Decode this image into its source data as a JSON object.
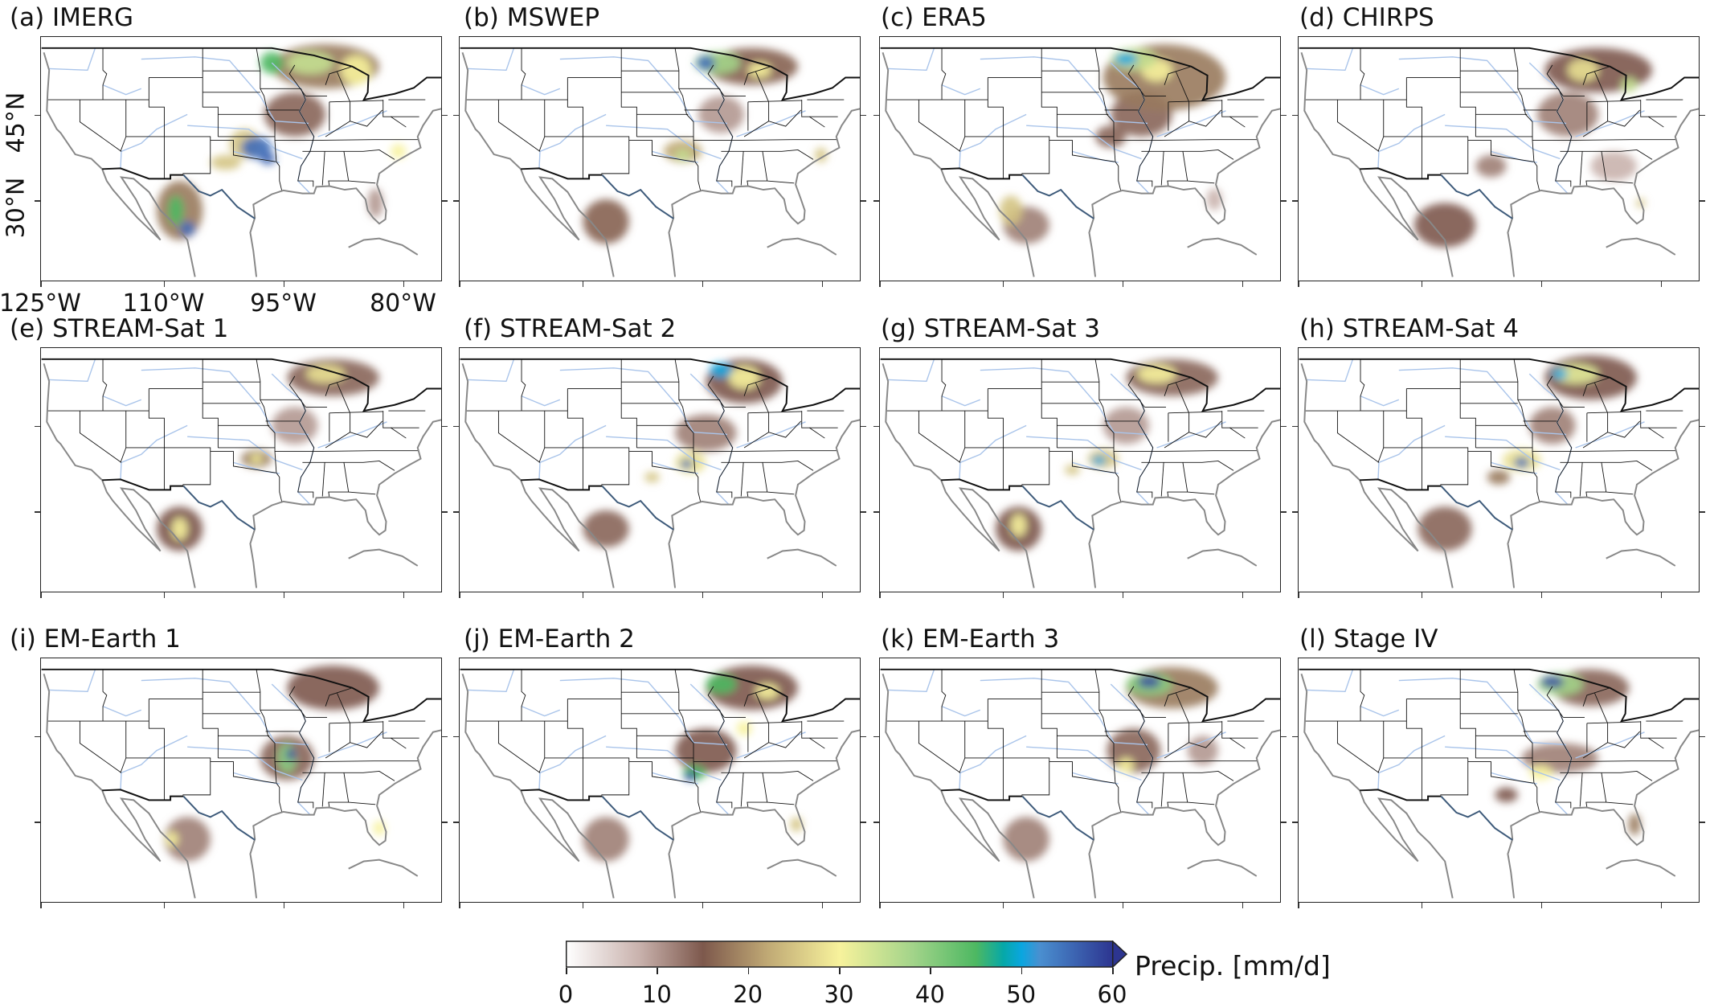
{
  "panels": [
    {
      "label": "(a) IMERG",
      "precip_regions": [
        {
          "lon": -88,
          "lat": 46.5,
          "rx": 7,
          "ry": 3,
          "mm": 18
        },
        {
          "lon": -92,
          "lat": 40,
          "rx": 4,
          "ry": 3,
          "mm": 14
        },
        {
          "lon": -90,
          "lat": 47,
          "rx": 3,
          "ry": 1.5,
          "mm": 35
        },
        {
          "lon": -84,
          "lat": 46,
          "rx": 2,
          "ry": 2,
          "mm": 30
        },
        {
          "lon": -95,
          "lat": 47,
          "rx": 1.5,
          "ry": 1.5,
          "mm": 45
        },
        {
          "lon": -98.5,
          "lat": 36,
          "rx": 2,
          "ry": 2,
          "mm": 25
        },
        {
          "lon": -97,
          "lat": 35.5,
          "rx": 2,
          "ry": 1.5,
          "mm": 55
        },
        {
          "lon": -95.5,
          "lat": 34,
          "rx": 1,
          "ry": 0.8,
          "mm": 56
        },
        {
          "lon": -101,
          "lat": 33.5,
          "rx": 2,
          "ry": 1,
          "mm": 25
        },
        {
          "lon": -107,
          "lat": 27,
          "rx": 3,
          "ry": 4,
          "mm": 18
        },
        {
          "lon": -107.5,
          "lat": 27,
          "rx": 1,
          "ry": 2,
          "mm": 45
        },
        {
          "lon": -106,
          "lat": 24.5,
          "rx": 1,
          "ry": 1,
          "mm": 55
        },
        {
          "lon": -78.5,
          "lat": 35,
          "rx": 1,
          "ry": 1,
          "mm": 30
        },
        {
          "lon": -81.5,
          "lat": 28,
          "rx": 1,
          "ry": 2,
          "mm": 10
        }
      ]
    },
    {
      "label": "(b) MSWEP",
      "precip_regions": [
        {
          "lon": -87,
          "lat": 46.5,
          "rx": 6,
          "ry": 2.5,
          "mm": 16
        },
        {
          "lon": -91,
          "lat": 40,
          "rx": 3,
          "ry": 2.5,
          "mm": 10
        },
        {
          "lon": -91.5,
          "lat": 47,
          "rx": 3,
          "ry": 1.5,
          "mm": 38
        },
        {
          "lon": -86,
          "lat": 46,
          "rx": 1.5,
          "ry": 1,
          "mm": 30
        },
        {
          "lon": -93,
          "lat": 47,
          "rx": 1.2,
          "ry": 1,
          "mm": 55
        },
        {
          "lon": -96,
          "lat": 35,
          "rx": 2.5,
          "ry": 1.5,
          "mm": 22
        },
        {
          "lon": -96,
          "lat": 34.5,
          "rx": 1,
          "ry": 0.7,
          "mm": 35
        },
        {
          "lon": -106,
          "lat": 25.5,
          "rx": 3,
          "ry": 3,
          "mm": 16
        },
        {
          "lon": -78,
          "lat": 34.5,
          "rx": 0.8,
          "ry": 1,
          "mm": 25
        }
      ]
    },
    {
      "label": "(c) ERA5",
      "precip_regions": [
        {
          "lon": -88,
          "lat": 45,
          "rx": 8,
          "ry": 4.5,
          "mm": 18
        },
        {
          "lon": -91,
          "lat": 40,
          "rx": 4,
          "ry": 3,
          "mm": 14
        },
        {
          "lon": -95,
          "lat": 37,
          "rx": 2,
          "ry": 1.5,
          "mm": 14
        },
        {
          "lon": -89,
          "lat": 46,
          "rx": 2,
          "ry": 1.5,
          "mm": 30
        },
        {
          "lon": -92,
          "lat": 47.5,
          "rx": 3,
          "ry": 1.5,
          "mm": 35
        },
        {
          "lon": -93,
          "lat": 47.5,
          "rx": 1.5,
          "ry": 0.8,
          "mm": 50
        },
        {
          "lon": -106,
          "lat": 25,
          "rx": 3,
          "ry": 2.5,
          "mm": 12
        },
        {
          "lon": -108,
          "lat": 27,
          "rx": 1.5,
          "ry": 2,
          "mm": 25
        },
        {
          "lon": -81.5,
          "lat": 28.5,
          "rx": 1,
          "ry": 1.5,
          "mm": 8
        }
      ]
    },
    {
      "label": "(d) CHIRPS",
      "precip_regions": [
        {
          "lon": -86,
          "lat": 46,
          "rx": 7,
          "ry": 3,
          "mm": 15
        },
        {
          "lon": -90,
          "lat": 40,
          "rx": 4,
          "ry": 3,
          "mm": 12
        },
        {
          "lon": -88,
          "lat": 46,
          "rx": 2,
          "ry": 1.5,
          "mm": 28
        },
        {
          "lon": -82,
          "lat": 44,
          "rx": 1,
          "ry": 1,
          "mm": 35
        },
        {
          "lon": -100,
          "lat": 33,
          "rx": 2,
          "ry": 1.5,
          "mm": 12
        },
        {
          "lon": -106,
          "lat": 25,
          "rx": 4,
          "ry": 3,
          "mm": 15
        },
        {
          "lon": -84,
          "lat": 33,
          "rx": 3,
          "ry": 2,
          "mm": 8
        },
        {
          "lon": -80.5,
          "lat": 28,
          "rx": 0.6,
          "ry": 0.6,
          "mm": 25
        }
      ]
    },
    {
      "label": "(e) STREAM-Sat 1",
      "precip_regions": [
        {
          "lon": -87,
          "lat": 46.5,
          "rx": 6,
          "ry": 2.5,
          "mm": 14
        },
        {
          "lon": -92,
          "lat": 40,
          "rx": 3,
          "ry": 2.5,
          "mm": 10
        },
        {
          "lon": -88,
          "lat": 47,
          "rx": 2.5,
          "ry": 1.2,
          "mm": 28
        },
        {
          "lon": -97,
          "lat": 35.5,
          "rx": 2,
          "ry": 1.2,
          "mm": 18
        },
        {
          "lon": -97,
          "lat": 35.5,
          "rx": 0.8,
          "ry": 0.6,
          "mm": 30
        },
        {
          "lon": -107,
          "lat": 26,
          "rx": 3,
          "ry": 3,
          "mm": 15
        },
        {
          "lon": -107,
          "lat": 26,
          "rx": 1,
          "ry": 1.5,
          "mm": 30
        }
      ]
    },
    {
      "label": "(f) STREAM-Sat 2",
      "precip_regions": [
        {
          "lon": -88,
          "lat": 46,
          "rx": 5,
          "ry": 3,
          "mm": 15
        },
        {
          "lon": -93,
          "lat": 39,
          "rx": 4,
          "ry": 2.5,
          "mm": 12
        },
        {
          "lon": -88,
          "lat": 46.5,
          "rx": 2,
          "ry": 1.5,
          "mm": 30
        },
        {
          "lon": -91,
          "lat": 47.5,
          "rx": 1.5,
          "ry": 1,
          "mm": 50
        },
        {
          "lon": -95,
          "lat": 35,
          "rx": 2,
          "ry": 1.5,
          "mm": 28
        },
        {
          "lon": -95.5,
          "lat": 34.8,
          "rx": 0.8,
          "ry": 0.6,
          "mm": 55
        },
        {
          "lon": -100,
          "lat": 33,
          "rx": 1,
          "ry": 0.7,
          "mm": 25
        },
        {
          "lon": -106,
          "lat": 26,
          "rx": 3,
          "ry": 2.5,
          "mm": 14
        }
      ]
    },
    {
      "label": "(g) STREAM-Sat 3",
      "precip_regions": [
        {
          "lon": -87,
          "lat": 46.5,
          "rx": 6,
          "ry": 2.5,
          "mm": 14
        },
        {
          "lon": -93,
          "lat": 40,
          "rx": 3,
          "ry": 2.5,
          "mm": 10
        },
        {
          "lon": -89,
          "lat": 47,
          "rx": 2.5,
          "ry": 1.2,
          "mm": 30
        },
        {
          "lon": -96,
          "lat": 35.5,
          "rx": 2,
          "ry": 1.3,
          "mm": 25
        },
        {
          "lon": -96.5,
          "lat": 35.3,
          "rx": 0.9,
          "ry": 0.6,
          "mm": 50
        },
        {
          "lon": -100,
          "lat": 34,
          "rx": 1,
          "ry": 0.7,
          "mm": 25
        },
        {
          "lon": -107,
          "lat": 26,
          "rx": 3,
          "ry": 3,
          "mm": 15
        },
        {
          "lon": -107,
          "lat": 26.5,
          "rx": 1,
          "ry": 1.5,
          "mm": 30
        }
      ]
    },
    {
      "label": "(h) STREAM-Sat 4",
      "precip_regions": [
        {
          "lon": -87,
          "lat": 46.5,
          "rx": 6,
          "ry": 3,
          "mm": 15
        },
        {
          "lon": -92,
          "lat": 40,
          "rx": 3,
          "ry": 2.5,
          "mm": 12
        },
        {
          "lon": -89,
          "lat": 47,
          "rx": 3,
          "ry": 1.3,
          "mm": 32
        },
        {
          "lon": -91,
          "lat": 47,
          "rx": 1,
          "ry": 0.7,
          "mm": 50
        },
        {
          "lon": -96,
          "lat": 35.3,
          "rx": 2.5,
          "ry": 1.5,
          "mm": 28
        },
        {
          "lon": -96,
          "lat": 35,
          "rx": 1,
          "ry": 0.7,
          "mm": 55
        },
        {
          "lon": -99,
          "lat": 33,
          "rx": 1.5,
          "ry": 1,
          "mm": 18
        },
        {
          "lon": -106,
          "lat": 26,
          "rx": 3.5,
          "ry": 3,
          "mm": 14
        }
      ]
    },
    {
      "label": "(i) EM-Earth 1",
      "precip_regions": [
        {
          "lon": -87,
          "lat": 46.5,
          "rx": 6,
          "ry": 3,
          "mm": 15
        },
        {
          "lon": -93,
          "lat": 37,
          "rx": 3.5,
          "ry": 3,
          "mm": 14
        },
        {
          "lon": -93,
          "lat": 37,
          "rx": 1.2,
          "ry": 2,
          "mm": 40
        },
        {
          "lon": -92.5,
          "lat": 37.5,
          "rx": 0.6,
          "ry": 0.8,
          "mm": 58
        },
        {
          "lon": -106,
          "lat": 26,
          "rx": 3,
          "ry": 3,
          "mm": 12
        },
        {
          "lon": -108,
          "lat": 26,
          "rx": 0.8,
          "ry": 1,
          "mm": 30
        },
        {
          "lon": -81,
          "lat": 27.5,
          "rx": 0.8,
          "ry": 1,
          "mm": 30
        }
      ]
    },
    {
      "label": "(j) EM-Earth 2",
      "precip_regions": [
        {
          "lon": -87,
          "lat": 46.5,
          "rx": 6,
          "ry": 3,
          "mm": 15
        },
        {
          "lon": -93,
          "lat": 38,
          "rx": 4,
          "ry": 3,
          "mm": 15
        },
        {
          "lon": -85,
          "lat": 46,
          "rx": 1.5,
          "ry": 1,
          "mm": 30
        },
        {
          "lon": -91,
          "lat": 47,
          "rx": 2,
          "ry": 1.3,
          "mm": 45
        },
        {
          "lon": -88,
          "lat": 41,
          "rx": 1,
          "ry": 1,
          "mm": 30
        },
        {
          "lon": -94.5,
          "lat": 35,
          "rx": 1.5,
          "ry": 1,
          "mm": 45
        },
        {
          "lon": -95,
          "lat": 34.5,
          "rx": 0.8,
          "ry": 0.6,
          "mm": 58
        },
        {
          "lon": -106,
          "lat": 26,
          "rx": 3,
          "ry": 3,
          "mm": 12
        },
        {
          "lon": -81.2,
          "lat": 28,
          "rx": 0.8,
          "ry": 1,
          "mm": 25
        }
      ]
    },
    {
      "label": "(k) EM-Earth 3",
      "precip_regions": [
        {
          "lon": -87,
          "lat": 46.5,
          "rx": 6,
          "ry": 2.8,
          "mm": 18
        },
        {
          "lon": -92,
          "lat": 38,
          "rx": 3.5,
          "ry": 3,
          "mm": 14
        },
        {
          "lon": -83,
          "lat": 38,
          "rx": 2,
          "ry": 2,
          "mm": 10
        },
        {
          "lon": -93,
          "lat": 36,
          "rx": 1,
          "ry": 1,
          "mm": 30
        },
        {
          "lon": -90,
          "lat": 47,
          "rx": 3,
          "ry": 1.5,
          "mm": 40
        },
        {
          "lon": -90,
          "lat": 47.3,
          "rx": 1.5,
          "ry": 0.8,
          "mm": 58
        },
        {
          "lon": -106,
          "lat": 26,
          "rx": 3,
          "ry": 3,
          "mm": 12
        }
      ]
    },
    {
      "label": "(l) Stage IV",
      "precip_regions": [
        {
          "lon": -87,
          "lat": 46.5,
          "rx": 5,
          "ry": 2.5,
          "mm": 14
        },
        {
          "lon": -91,
          "lat": 37,
          "rx": 5,
          "ry": 2,
          "mm": 12
        },
        {
          "lon": -98,
          "lat": 32,
          "rx": 1.5,
          "ry": 1,
          "mm": 15
        },
        {
          "lon": -81.3,
          "lat": 28,
          "rx": 0.8,
          "ry": 1.5,
          "mm": 18
        },
        {
          "lon": -93.5,
          "lat": 35,
          "rx": 1.5,
          "ry": 1,
          "mm": 30
        },
        {
          "lon": -91,
          "lat": 47,
          "rx": 3,
          "ry": 1.5,
          "mm": 38
        },
        {
          "lon": -92,
          "lat": 47.3,
          "rx": 1.5,
          "ry": 0.8,
          "mm": 58
        }
      ]
    }
  ],
  "axes": {
    "lat_ticks": [
      "45°N",
      "30°N"
    ],
    "lon_ticks": [
      "125°W",
      "110°W",
      "95°W",
      "80°W"
    ]
  },
  "colorbar": {
    "label": "Precip. [mm/d]",
    "range": [
      0,
      60
    ],
    "extend": "max",
    "ticks": [
      "0",
      "10",
      "20",
      "30",
      "40",
      "50",
      "60"
    ],
    "colormap": [
      {
        "v": 0,
        "c": "#ffffff"
      },
      {
        "v": 8,
        "c": "#c9b2ad"
      },
      {
        "v": 15,
        "c": "#7d584c"
      },
      {
        "v": 22,
        "c": "#bfa874"
      },
      {
        "v": 30,
        "c": "#f7f29c"
      },
      {
        "v": 38,
        "c": "#a3d48a"
      },
      {
        "v": 45,
        "c": "#4db862"
      },
      {
        "v": 48,
        "c": "#06a8a8"
      },
      {
        "v": 50,
        "c": "#0aa6e0"
      },
      {
        "v": 52,
        "c": "#4a8fd0"
      },
      {
        "v": 60,
        "c": "#2d3590"
      }
    ]
  },
  "colors": {
    "state_border": "#111111",
    "coastline": "#888888",
    "river": "#a9c4ea",
    "rio_grande": "#3d5a7a",
    "frame": "#222222"
  }
}
